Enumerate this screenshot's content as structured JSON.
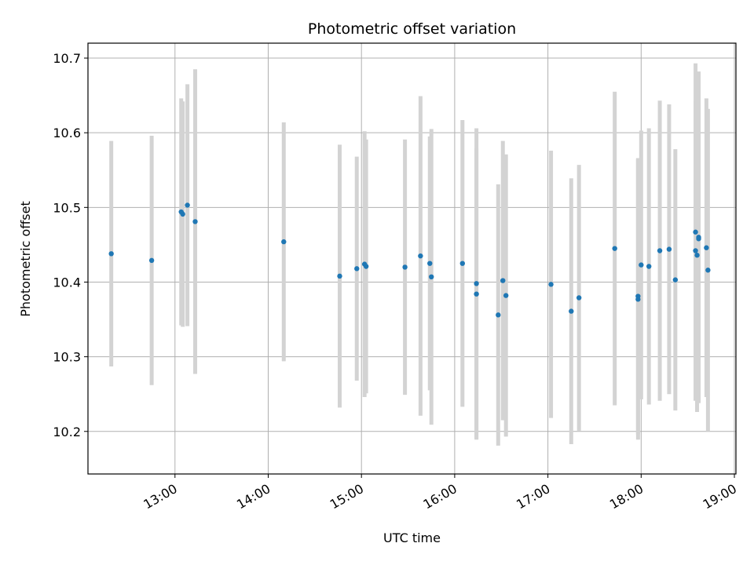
{
  "chart_data": {
    "type": "scatter",
    "title": "Photometric offset variation",
    "xlabel": "UTC time",
    "ylabel": "Photometric offset",
    "x_is_time": true,
    "xlim": [
      "12:04",
      "19:01"
    ],
    "ylim": [
      10.143,
      10.72
    ],
    "x_ticks": [
      "13:00",
      "14:00",
      "15:00",
      "16:00",
      "17:00",
      "18:00",
      "19:00"
    ],
    "y_ticks": [
      10.2,
      10.3,
      10.4,
      10.5,
      10.6,
      10.7
    ],
    "grid": true,
    "colors": {
      "points": "#1f77b4",
      "errorbars": "#d3d3d3",
      "grid": "#b0b0b0"
    },
    "points": [
      {
        "t": "12:19",
        "y": 10.438,
        "err": 0.151
      },
      {
        "t": "12:45",
        "y": 10.429,
        "err": 0.167
      },
      {
        "t": "13:04",
        "y": 10.494,
        "err": 0.152
      },
      {
        "t": "13:05",
        "y": 10.491,
        "err": 0.151
      },
      {
        "t": "13:08",
        "y": 10.503,
        "err": 0.162
      },
      {
        "t": "13:13",
        "y": 10.481,
        "err": 0.204
      },
      {
        "t": "14:10",
        "y": 10.454,
        "err": 0.16
      },
      {
        "t": "14:46",
        "y": 10.408,
        "err": 0.176
      },
      {
        "t": "14:57",
        "y": 10.418,
        "err": 0.15
      },
      {
        "t": "15:02",
        "y": 10.424,
        "err": 0.178
      },
      {
        "t": "15:03",
        "y": 10.421,
        "err": 0.17
      },
      {
        "t": "15:28",
        "y": 10.42,
        "err": 0.171
      },
      {
        "t": "15:38",
        "y": 10.435,
        "err": 0.214
      },
      {
        "t": "15:44",
        "y": 10.425,
        "err": 0.17
      },
      {
        "t": "15:45",
        "y": 10.407,
        "err": 0.198
      },
      {
        "t": "16:05",
        "y": 10.425,
        "err": 0.192
      },
      {
        "t": "16:14",
        "y": 10.398,
        "err": 0.208
      },
      {
        "t": "16:14",
        "y": 10.384,
        "err": 0.195
      },
      {
        "t": "16:28",
        "y": 10.356,
        "err": 0.175
      },
      {
        "t": "16:31",
        "y": 10.402,
        "err": 0.187
      },
      {
        "t": "16:33",
        "y": 10.382,
        "err": 0.189
      },
      {
        "t": "17:02",
        "y": 10.397,
        "err": 0.179
      },
      {
        "t": "17:15",
        "y": 10.361,
        "err": 0.178
      },
      {
        "t": "17:20",
        "y": 10.379,
        "err": 0.178
      },
      {
        "t": "17:43",
        "y": 10.445,
        "err": 0.21
      },
      {
        "t": "17:58",
        "y": 10.381,
        "err": 0.185
      },
      {
        "t": "17:58",
        "y": 10.377,
        "err": 0.188
      },
      {
        "t": "18:00",
        "y": 10.423,
        "err": 0.18
      },
      {
        "t": "18:05",
        "y": 10.421,
        "err": 0.185
      },
      {
        "t": "18:12",
        "y": 10.442,
        "err": 0.201
      },
      {
        "t": "18:18",
        "y": 10.444,
        "err": 0.194
      },
      {
        "t": "18:22",
        "y": 10.403,
        "err": 0.175
      },
      {
        "t": "18:35",
        "y": 10.467,
        "err": 0.226
      },
      {
        "t": "18:35",
        "y": 10.442,
        "err": 0.2
      },
      {
        "t": "18:36",
        "y": 10.436,
        "err": 0.21
      },
      {
        "t": "18:37",
        "y": 10.46,
        "err": 0.222
      },
      {
        "t": "18:37",
        "y": 10.458,
        "err": 0.22
      },
      {
        "t": "18:42",
        "y": 10.446,
        "err": 0.2
      },
      {
        "t": "18:43",
        "y": 10.416,
        "err": 0.216
      }
    ]
  }
}
